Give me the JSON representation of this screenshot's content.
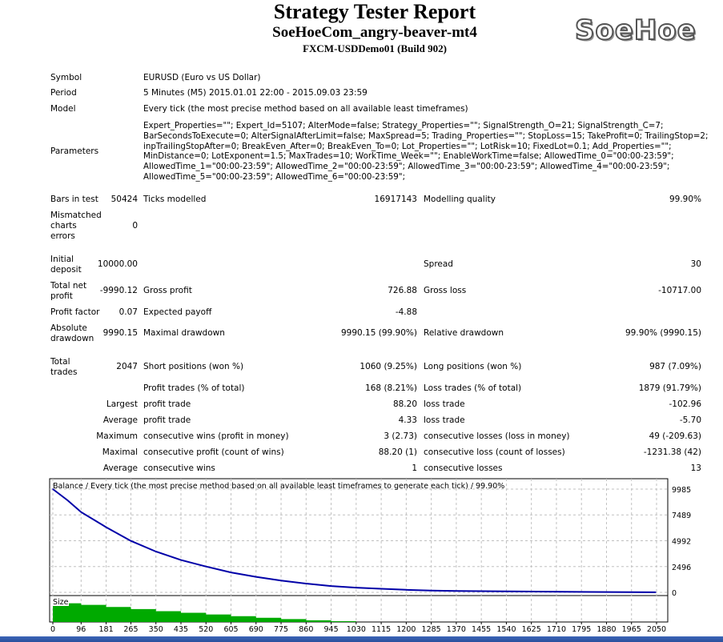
{
  "header": {
    "title": "Strategy Tester Report",
    "subtitle": "SoeHoeCom_angry-beaver-mt4",
    "build": "FXCM-USDDemo01 (Build 902)",
    "logo": "SoeHoe"
  },
  "info": {
    "symbol_label": "Symbol",
    "symbol": "EURUSD (Euro vs US Dollar)",
    "period_label": "Period",
    "period": "5 Minutes (M5) 2015.01.01 22:00 - 2015.09.03 23:59",
    "model_label": "Model",
    "model": "Every tick (the most precise method based on all available least timeframes)",
    "parameters_label": "Parameters",
    "parameters": [
      "Expert_Properties=\"\"; Expert_Id=5107; AlterMode=false; Strategy_Properties=\"\"; SignalStrength_O=21; SignalStrength_C=7;",
      "BarSecondsToExecute=0; AlterSignalAfterLimit=false; MaxSpread=5; Trading_Properties=\"\"; StopLoss=15; TakeProfit=0; TrailingStop=2;",
      "inpTrailingStopAfter=0; BreakEven_After=0; BreakEven_To=0; Lot_Properties=\"\"; LotRisk=10; FixedLot=0.1; Add_Properties=\"\";",
      "MinDistance=0; LotExponent=1.5; MaxTrades=10; WorkTime_Week=\"\"; EnableWorkTime=false; AllowedTime_0=\"00:00-23:59\";",
      "AllowedTime_1=\"00:00-23:59\"; AllowedTime_2=\"00:00-23:59\"; AllowedTime_3=\"00:00-23:59\"; AllowedTime_4=\"00:00-23:59\";",
      "AllowedTime_5=\"00:00-23:59\"; AllowedTime_6=\"00:00-23:59\";"
    ]
  },
  "stats": {
    "bars_label": "Bars in test",
    "bars": "50424",
    "ticks_label": "Ticks modelled",
    "ticks": "16917143",
    "quality_label": "Modelling quality",
    "quality": "99.90%",
    "mismatch_label": [
      "Mismatched",
      "charts",
      "errors"
    ],
    "mismatch": "0",
    "deposit_label": [
      "Initial",
      "deposit"
    ],
    "deposit": "10000.00",
    "spread_label": "Spread",
    "spread": "30",
    "netprofit_label": [
      "Total net",
      "profit"
    ],
    "netprofit": "-9990.12",
    "grossprofit_label": "Gross profit",
    "grossprofit": "726.88",
    "grossloss_label": "Gross loss",
    "grossloss": "-10717.00",
    "pf_label": "Profit factor",
    "pf": "0.07",
    "payoff_label": "Expected payoff",
    "payoff": "-4.88",
    "absdd_label": [
      "Absolute",
      "drawdown"
    ],
    "absdd": "9990.15",
    "maxdd_label": "Maximal drawdown",
    "maxdd": "9990.15 (99.90%)",
    "reldd_label": "Relative drawdown",
    "reldd": "99.90% (9990.15)",
    "trades_label": [
      "Total",
      "trades"
    ],
    "trades": "2047",
    "short_label": "Short positions (won %)",
    "short": "1060 (9.25%)",
    "long_label": "Long positions (won %)",
    "long": "987 (7.09%)",
    "rows": [
      {
        "a": "",
        "b": "Profit trades (% of total)",
        "bv": "168 (8.21%)",
        "c": "Loss trades (% of total)",
        "cv": "1879 (91.79%)"
      },
      {
        "a": "Largest",
        "b": "profit trade",
        "bv": "88.20",
        "c": "loss trade",
        "cv": "-102.96"
      },
      {
        "a": "Average",
        "b": "profit trade",
        "bv": "4.33",
        "c": "loss trade",
        "cv": "-5.70"
      },
      {
        "a": "Maximum",
        "b": "consecutive wins (profit in money)",
        "bv": "3 (2.73)",
        "c": "consecutive losses (loss in money)",
        "cv": "49 (-209.63)"
      },
      {
        "a": "Maximal",
        "b": "consecutive profit (count of wins)",
        "bv": "88.20 (1)",
        "c": "consecutive loss (count of losses)",
        "cv": "-1231.38 (42)"
      },
      {
        "a": "Average",
        "b": "consecutive wins",
        "bv": "1",
        "c": "consecutive losses",
        "cv": "13"
      }
    ]
  },
  "chart_data": {
    "type": "line",
    "title": "Balance / Every tick (the most precise method based on all available least timeframes to generate each tick) / 99.90%",
    "size_label": "Size",
    "xlim": [
      0,
      2090
    ],
    "ylim": [
      0,
      9985
    ],
    "yticks": [
      "9985",
      "7489",
      "4992",
      "2496",
      "0"
    ],
    "xticks": [
      "0",
      "96",
      "181",
      "265",
      "350",
      "435",
      "520",
      "605",
      "690",
      "775",
      "860",
      "945",
      "1030",
      "1115",
      "1200",
      "1285",
      "1370",
      "1455",
      "1540",
      "1625",
      "1710",
      "1795",
      "1880",
      "1965",
      "2050"
    ],
    "balance": [
      [
        0,
        9985
      ],
      [
        50,
        8900
      ],
      [
        96,
        7760
      ],
      [
        181,
        6300
      ],
      [
        265,
        4980
      ],
      [
        350,
        3950
      ],
      [
        435,
        3125
      ],
      [
        520,
        2500
      ],
      [
        605,
        1930
      ],
      [
        690,
        1500
      ],
      [
        775,
        1140
      ],
      [
        860,
        850
      ],
      [
        945,
        610
      ],
      [
        1030,
        460
      ],
      [
        1115,
        345
      ],
      [
        1200,
        250
      ],
      [
        1285,
        180
      ],
      [
        1370,
        140
      ],
      [
        1540,
        100
      ],
      [
        1830,
        40
      ],
      [
        2047,
        10
      ]
    ],
    "size": [
      [
        0,
        1.0
      ],
      [
        50,
        0.9
      ],
      [
        96,
        0.82
      ],
      [
        181,
        0.72
      ],
      [
        265,
        0.62
      ],
      [
        350,
        0.52
      ],
      [
        435,
        0.44
      ],
      [
        520,
        0.36
      ],
      [
        605,
        0.28
      ],
      [
        690,
        0.2
      ],
      [
        775,
        0.14
      ],
      [
        860,
        0.08
      ],
      [
        945,
        0.04
      ],
      [
        1030,
        0
      ]
    ],
    "colors": {
      "balance": "#0000a8",
      "size": "#00aa00",
      "grid": "#c0c0c0"
    }
  },
  "taskbar": {
    "color": "#3461b3"
  }
}
